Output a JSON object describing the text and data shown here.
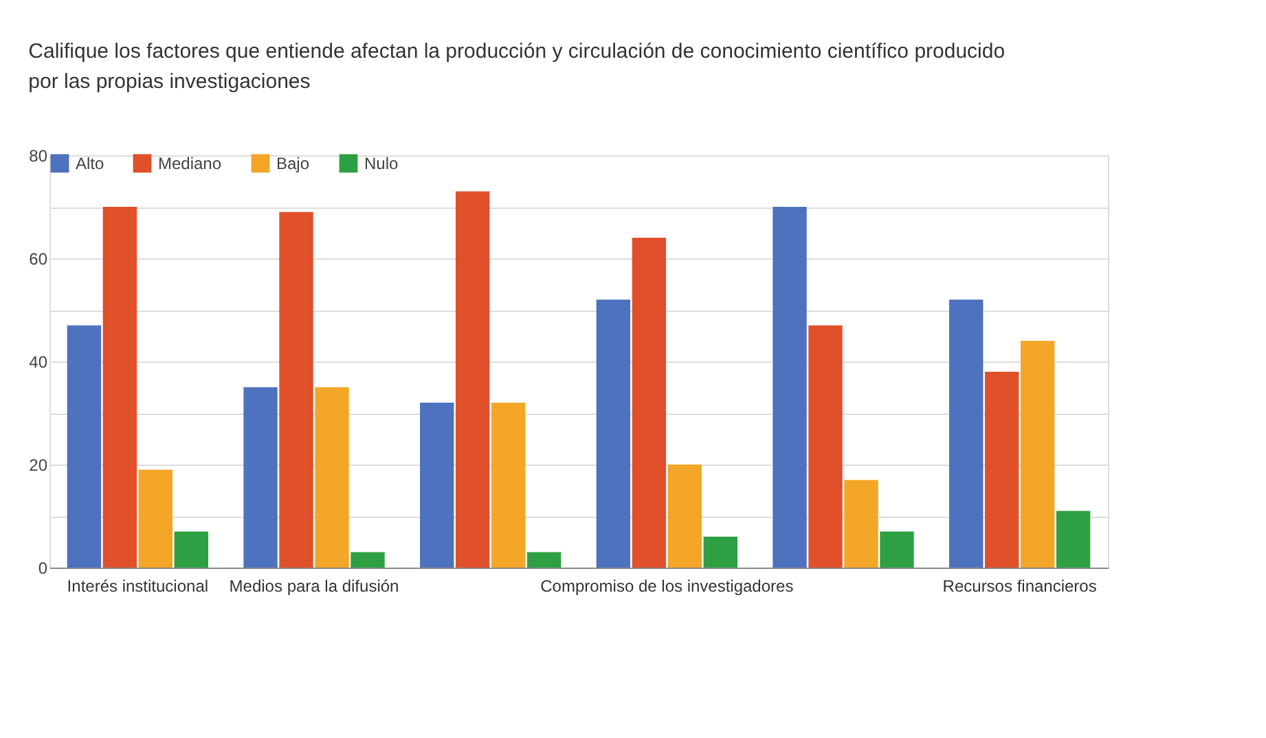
{
  "chart_data": {
    "type": "bar",
    "title": "Califique los factores que entiende afectan la producción y circulación de conocimiento científico producido por las propias investigaciones",
    "categories": [
      "Interés institucional",
      "Medios para la difusión",
      null,
      "Compromiso de los investigadores",
      null,
      "Recursos financieros"
    ],
    "series": [
      {
        "name": "Alto",
        "color": "#4e72bd",
        "values": [
          47,
          35,
          32,
          52,
          70,
          52
        ]
      },
      {
        "name": "Mediano",
        "color": "#e0502a",
        "values": [
          70,
          69,
          73,
          64,
          47,
          38
        ]
      },
      {
        "name": "Bajo",
        "color": "#f3a628",
        "values": [
          19,
          35,
          32,
          20,
          17,
          44
        ]
      },
      {
        "name": "Nulo",
        "color": "#2ea043",
        "values": [
          7,
          3,
          3,
          6,
          7,
          11
        ]
      }
    ],
    "ylim": [
      0,
      80
    ],
    "yticks": [
      0,
      {
        "value": 10,
        "label": null
      },
      20,
      {
        "value": 30,
        "label": null
      },
      40,
      {
        "value": 50,
        "label": null
      },
      60,
      {
        "value": 70,
        "label": null
      },
      80
    ],
    "grid": "y",
    "legend": "top left"
  }
}
